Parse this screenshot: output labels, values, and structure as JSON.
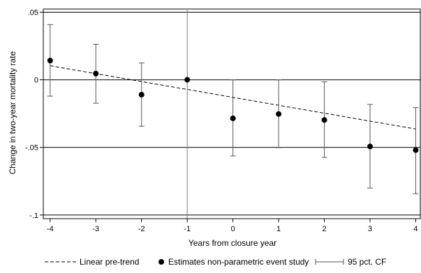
{
  "chart_data": {
    "type": "scatter",
    "title": "",
    "xlabel": "Years from closure year",
    "ylabel": "Change in two-year mortality rate",
    "x_ticks": [
      -4,
      -3,
      -2,
      -1,
      0,
      1,
      2,
      3,
      4
    ],
    "y_ticks": [
      0.05,
      0,
      -0.05,
      -0.1
    ],
    "y_tick_labels": [
      ".05",
      "0",
      "-.05",
      "-.1"
    ],
    "xlim": [
      -4.15,
      4.1
    ],
    "ylim": [
      -0.1027,
      0.0523
    ],
    "grid": "horizontal",
    "reference_x": -1,
    "reference_x_color": "#7a7a7a",
    "legend_position": "bottom",
    "series": [
      {
        "name": "Estimates non-parametric event study",
        "kind": "points",
        "color": "#000000",
        "x": [
          -4,
          -3,
          -2,
          -1,
          0,
          1,
          2,
          3,
          4
        ],
        "y": [
          0.0142,
          0.0046,
          -0.011,
          0.0,
          -0.0285,
          -0.0253,
          -0.0297,
          -0.0493,
          -0.052
        ],
        "ci_low": [
          -0.0121,
          -0.0173,
          -0.0343,
          null,
          -0.0563,
          -0.0502,
          -0.0574,
          -0.0801,
          -0.0842
        ],
        "ci_high": [
          0.0408,
          0.0263,
          0.0125,
          null,
          -0.0001,
          -0.0001,
          -0.0015,
          -0.0182,
          -0.0206
        ]
      },
      {
        "name": "Linear pre-trend",
        "kind": "dashed-line",
        "color": "#000000",
        "x": [
          -4,
          4
        ],
        "y": [
          0.0104,
          -0.0364
        ]
      }
    ],
    "legend": [
      {
        "label": "Linear pre-trend",
        "symbol": "dashed-line"
      },
      {
        "label": "Estimates non-parametric event study",
        "symbol": "dot"
      },
      {
        "label": "95 pct. CF",
        "symbol": "capped-range"
      }
    ]
  }
}
